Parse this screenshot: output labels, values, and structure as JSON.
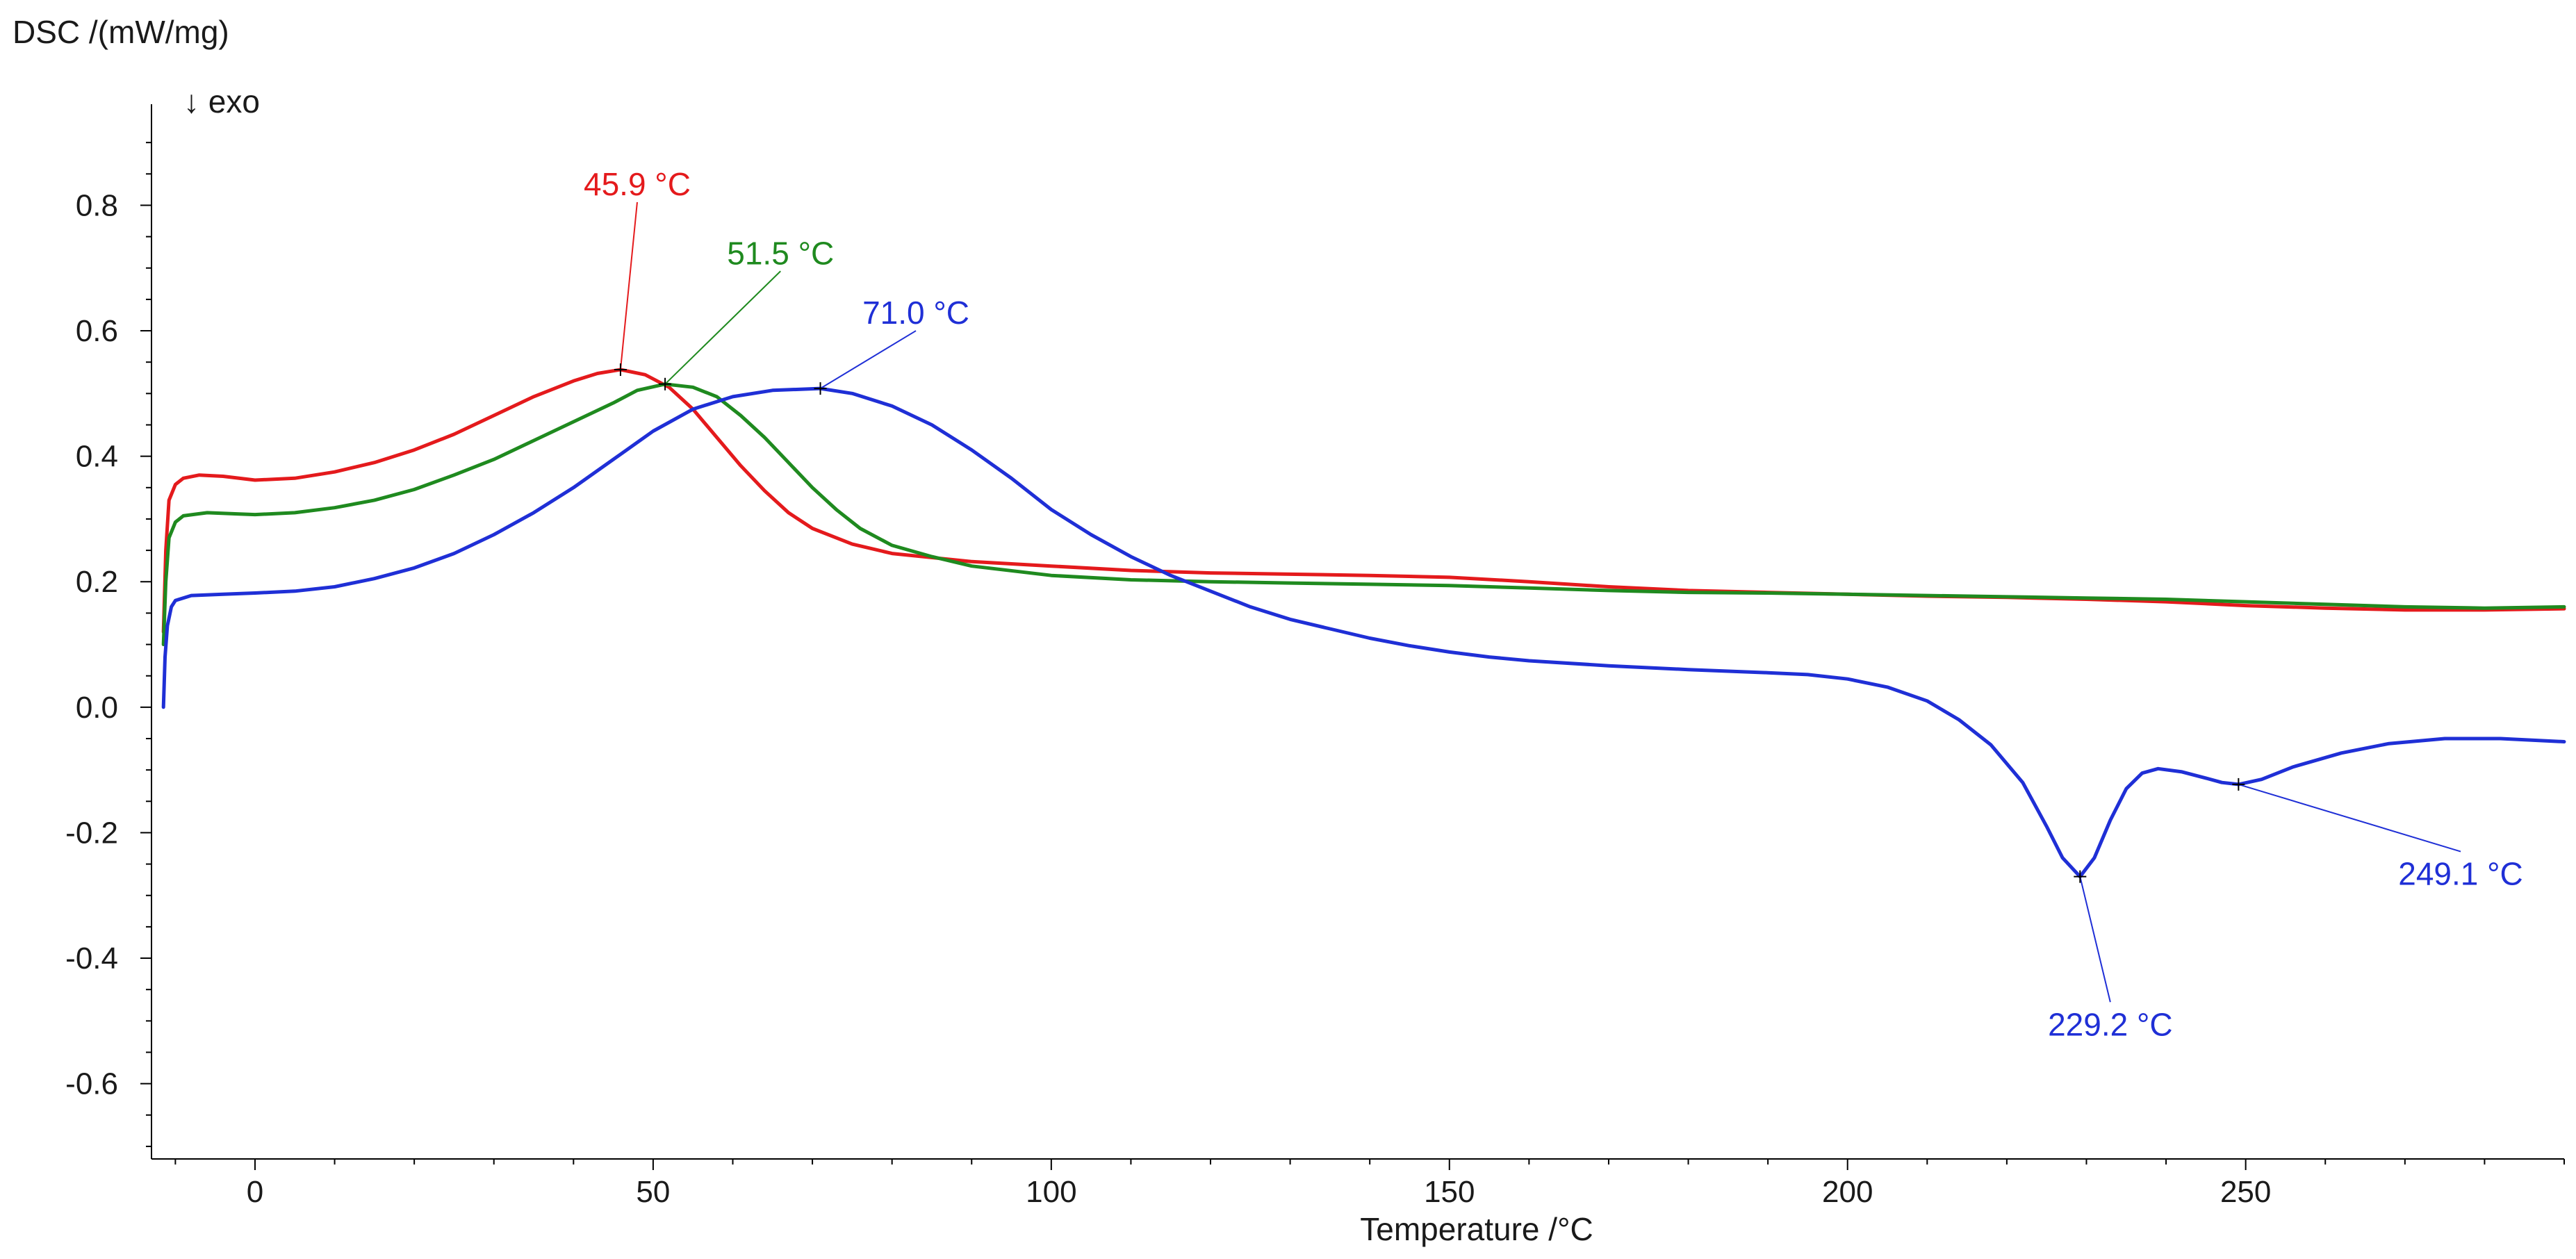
{
  "chart_data": {
    "type": "line",
    "ylabel": "DSC /(mW/mg)",
    "xlabel": "Temperature /°C",
    "exo_label": "↓ exo",
    "xlim": [
      -13,
      290
    ],
    "ylim": [
      -0.72,
      0.95
    ],
    "x_ticks": [
      0,
      50,
      100,
      150,
      200,
      250
    ],
    "x_tick_labels": [
      "0",
      "50",
      "100",
      "150",
      "200",
      "250"
    ],
    "y_ticks": [
      0.8,
      0.6,
      0.4,
      0.2,
      0.0,
      -0.2,
      -0.4,
      -0.6
    ],
    "y_tick_labels": [
      "0.8",
      "0.6",
      "0.4",
      "0.2",
      "0.0",
      "-0.2",
      "-0.4",
      "-0.6"
    ],
    "series": [
      {
        "name": "red",
        "color": "#e41a1c",
        "points": [
          [
            -11.5,
            0.12
          ],
          [
            -11.2,
            0.25
          ],
          [
            -10.8,
            0.33
          ],
          [
            -10,
            0.355
          ],
          [
            -9,
            0.365
          ],
          [
            -7,
            0.37
          ],
          [
            -4,
            0.368
          ],
          [
            0,
            0.362
          ],
          [
            5,
            0.365
          ],
          [
            10,
            0.375
          ],
          [
            15,
            0.39
          ],
          [
            20,
            0.41
          ],
          [
            25,
            0.435
          ],
          [
            30,
            0.465
          ],
          [
            35,
            0.495
          ],
          [
            40,
            0.52
          ],
          [
            43,
            0.532
          ],
          [
            45.9,
            0.538
          ],
          [
            49,
            0.53
          ],
          [
            52,
            0.51
          ],
          [
            55,
            0.475
          ],
          [
            58,
            0.43
          ],
          [
            61,
            0.385
          ],
          [
            64,
            0.345
          ],
          [
            67,
            0.31
          ],
          [
            70,
            0.285
          ],
          [
            75,
            0.26
          ],
          [
            80,
            0.245
          ],
          [
            90,
            0.232
          ],
          [
            100,
            0.225
          ],
          [
            110,
            0.218
          ],
          [
            120,
            0.214
          ],
          [
            130,
            0.212
          ],
          [
            140,
            0.21
          ],
          [
            150,
            0.207
          ],
          [
            160,
            0.2
          ],
          [
            170,
            0.192
          ],
          [
            180,
            0.186
          ],
          [
            190,
            0.183
          ],
          [
            200,
            0.18
          ],
          [
            210,
            0.177
          ],
          [
            220,
            0.175
          ],
          [
            230,
            0.172
          ],
          [
            240,
            0.168
          ],
          [
            250,
            0.162
          ],
          [
            260,
            0.158
          ],
          [
            270,
            0.155
          ],
          [
            280,
            0.155
          ],
          [
            290,
            0.157
          ]
        ]
      },
      {
        "name": "green",
        "color": "#1f8a1f",
        "points": [
          [
            -11.5,
            0.1
          ],
          [
            -11.2,
            0.2
          ],
          [
            -10.8,
            0.27
          ],
          [
            -10,
            0.295
          ],
          [
            -9,
            0.305
          ],
          [
            -6,
            0.31
          ],
          [
            -2,
            0.308
          ],
          [
            0,
            0.307
          ],
          [
            5,
            0.31
          ],
          [
            10,
            0.318
          ],
          [
            15,
            0.33
          ],
          [
            20,
            0.347
          ],
          [
            25,
            0.37
          ],
          [
            30,
            0.395
          ],
          [
            35,
            0.425
          ],
          [
            40,
            0.455
          ],
          [
            45,
            0.485
          ],
          [
            48,
            0.505
          ],
          [
            51.5,
            0.515
          ],
          [
            55,
            0.51
          ],
          [
            58,
            0.495
          ],
          [
            61,
            0.465
          ],
          [
            64,
            0.43
          ],
          [
            67,
            0.39
          ],
          [
            70,
            0.35
          ],
          [
            73,
            0.315
          ],
          [
            76,
            0.285
          ],
          [
            80,
            0.258
          ],
          [
            85,
            0.24
          ],
          [
            90,
            0.225
          ],
          [
            100,
            0.21
          ],
          [
            110,
            0.203
          ],
          [
            120,
            0.2
          ],
          [
            130,
            0.198
          ],
          [
            140,
            0.196
          ],
          [
            150,
            0.194
          ],
          [
            160,
            0.19
          ],
          [
            170,
            0.186
          ],
          [
            180,
            0.183
          ],
          [
            190,
            0.182
          ],
          [
            200,
            0.18
          ],
          [
            210,
            0.178
          ],
          [
            220,
            0.176
          ],
          [
            230,
            0.174
          ],
          [
            240,
            0.172
          ],
          [
            250,
            0.168
          ],
          [
            260,
            0.164
          ],
          [
            270,
            0.16
          ],
          [
            280,
            0.158
          ],
          [
            290,
            0.16
          ]
        ]
      },
      {
        "name": "blue",
        "color": "#1f2fd6",
        "points": [
          [
            -11.5,
            0.0
          ],
          [
            -11.3,
            0.08
          ],
          [
            -11,
            0.13
          ],
          [
            -10.5,
            0.16
          ],
          [
            -10,
            0.17
          ],
          [
            -8,
            0.178
          ],
          [
            -4,
            0.18
          ],
          [
            0,
            0.182
          ],
          [
            5,
            0.185
          ],
          [
            10,
            0.192
          ],
          [
            15,
            0.205
          ],
          [
            20,
            0.222
          ],
          [
            25,
            0.245
          ],
          [
            30,
            0.275
          ],
          [
            35,
            0.31
          ],
          [
            40,
            0.35
          ],
          [
            45,
            0.395
          ],
          [
            50,
            0.44
          ],
          [
            55,
            0.475
          ],
          [
            60,
            0.495
          ],
          [
            65,
            0.505
          ],
          [
            71,
            0.508
          ],
          [
            75,
            0.5
          ],
          [
            80,
            0.48
          ],
          [
            85,
            0.45
          ],
          [
            90,
            0.41
          ],
          [
            95,
            0.365
          ],
          [
            100,
            0.315
          ],
          [
            105,
            0.275
          ],
          [
            110,
            0.24
          ],
          [
            115,
            0.21
          ],
          [
            120,
            0.185
          ],
          [
            125,
            0.16
          ],
          [
            130,
            0.14
          ],
          [
            135,
            0.125
          ],
          [
            140,
            0.11
          ],
          [
            145,
            0.098
          ],
          [
            150,
            0.088
          ],
          [
            155,
            0.08
          ],
          [
            160,
            0.074
          ],
          [
            170,
            0.066
          ],
          [
            180,
            0.06
          ],
          [
            190,
            0.055
          ],
          [
            195,
            0.052
          ],
          [
            200,
            0.045
          ],
          [
            205,
            0.032
          ],
          [
            210,
            0.01
          ],
          [
            214,
            -0.02
          ],
          [
            218,
            -0.06
          ],
          [
            222,
            -0.12
          ],
          [
            225,
            -0.19
          ],
          [
            227,
            -0.24
          ],
          [
            229.2,
            -0.27
          ],
          [
            231,
            -0.24
          ],
          [
            233,
            -0.18
          ],
          [
            235,
            -0.13
          ],
          [
            237,
            -0.105
          ],
          [
            239,
            -0.098
          ],
          [
            242,
            -0.103
          ],
          [
            245,
            -0.113
          ],
          [
            247,
            -0.12
          ],
          [
            249.1,
            -0.123
          ],
          [
            252,
            -0.115
          ],
          [
            256,
            -0.095
          ],
          [
            262,
            -0.073
          ],
          [
            268,
            -0.058
          ],
          [
            275,
            -0.05
          ],
          [
            282,
            -0.05
          ],
          [
            290,
            -0.055
          ]
        ]
      }
    ],
    "annotations": [
      {
        "text": "45.9 °C",
        "color": "#e41a1c",
        "x": 45.9,
        "y": 0.538,
        "label_x": 48,
        "label_y": 0.805
      },
      {
        "text": "51.5 °C",
        "color": "#1f8a1f",
        "x": 51.5,
        "y": 0.515,
        "label_x": 66,
        "label_y": 0.695
      },
      {
        "text": "71.0 °C",
        "color": "#1f2fd6",
        "x": 71.0,
        "y": 0.508,
        "label_x": 83,
        "label_y": 0.6
      },
      {
        "text": "229.2 °C",
        "color": "#1f2fd6",
        "x": 229.2,
        "y": -0.27,
        "label_x": 233,
        "label_y": -0.47
      },
      {
        "text": "249.1 °C",
        "color": "#1f2fd6",
        "x": 249.1,
        "y": -0.123,
        "label_x": 277,
        "label_y": -0.23
      }
    ]
  }
}
